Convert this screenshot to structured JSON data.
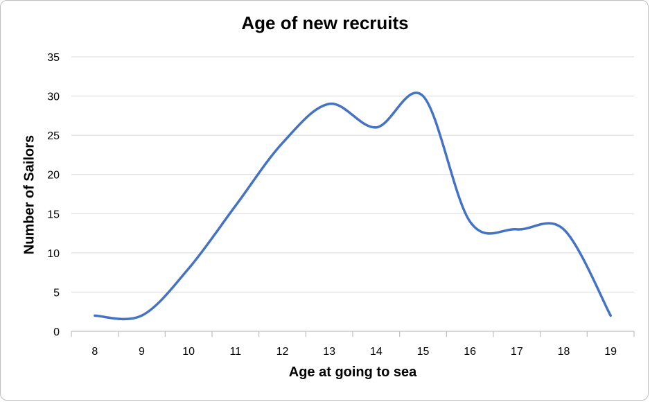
{
  "chart_data": {
    "type": "line",
    "title": "Age of new recruits",
    "xlabel": "Age at going to sea",
    "ylabel": "Number of Sailors",
    "x": [
      8,
      9,
      10,
      11,
      12,
      13,
      14,
      15,
      16,
      17,
      18,
      19
    ],
    "series": [
      {
        "values": [
          2,
          2,
          8,
          16,
          24,
          29,
          26,
          30,
          14,
          13,
          13,
          2
        ]
      }
    ],
    "ylim": [
      0,
      35
    ],
    "yticks": [
      0,
      5,
      10,
      15,
      20,
      25,
      30,
      35
    ],
    "grid": true,
    "smooth": true,
    "legend": "none",
    "colors": {
      "line": "#4472c4",
      "grid": "#d9d9d9",
      "axis": "#bfbfbf"
    }
  }
}
